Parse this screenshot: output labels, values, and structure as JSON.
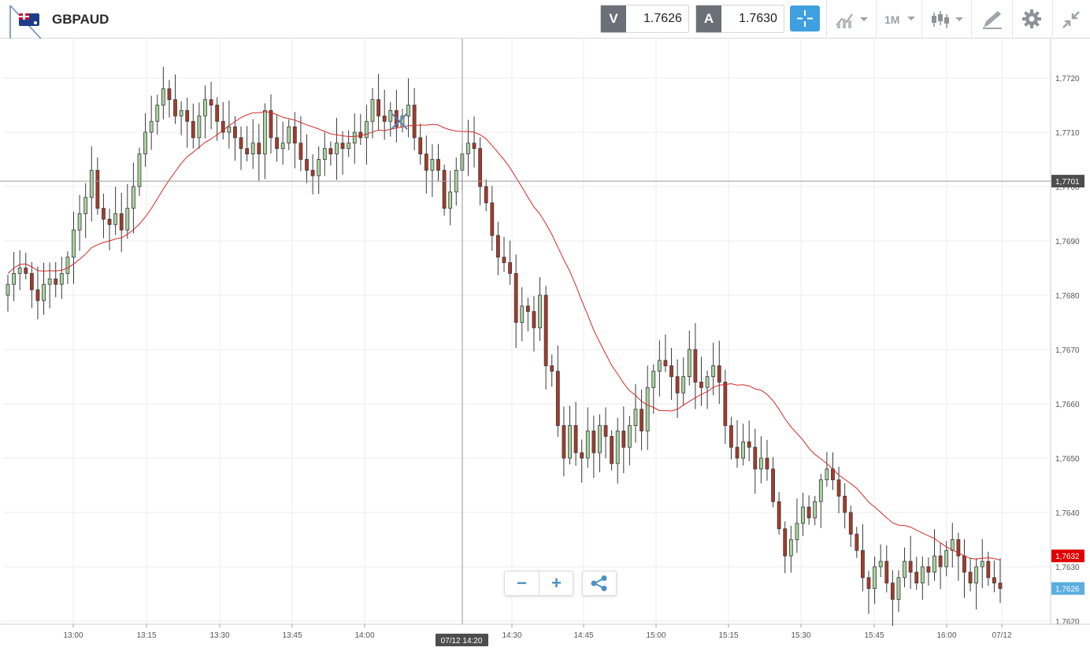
{
  "header": {
    "symbol": "GBPAUD",
    "flag_icon": "gbp-aud-flag-icon",
    "sell": {
      "label": "V",
      "value": "1.7626"
    },
    "buy": {
      "label": "A",
      "value": "1.7630"
    },
    "tools": {
      "crosshair_icon": "crosshair-icon",
      "indicators_icon": "indicators-icon",
      "timeframe": "1M",
      "chart_type_icon": "candlestick-icon",
      "drawing_icon": "drawing-tools-icon",
      "settings_icon": "gear-icon",
      "fullscreen_icon": "collapse-icon"
    }
  },
  "controls": {
    "zoom_out": "−",
    "zoom_in": "+",
    "share_icon": "share-icon"
  },
  "chart_data": {
    "type": "candlestick",
    "timeframe": "1M",
    "x_ticks": [
      "13:00",
      "13:15",
      "13:30",
      "13:45",
      "14:00",
      "14:30",
      "14:45",
      "15:00",
      "15:15",
      "15:30",
      "15:45",
      "16:00",
      "07/12"
    ],
    "y_ticks": [
      "1,7620",
      "1,7630",
      "1,7640",
      "1,7650",
      "1,7660",
      "1,7670",
      "1,7680",
      "1,7690",
      "1,7700",
      "1,7710",
      "1,7720"
    ],
    "ylim": [
      1.762,
      1.773
    ],
    "crosshair": {
      "time_label": "07/12 14:20",
      "price_label": "1,7701",
      "price": 1.7701
    },
    "price_labels": {
      "ma": {
        "text": "1,7632",
        "value": 1.7632,
        "color": "#e00000"
      },
      "last": {
        "text": "1,7626",
        "value": 1.7626,
        "color": "#5aaee0"
      }
    },
    "colors": {
      "up": "#a9d4a0",
      "down": "#a83a2a",
      "ma": "#d22a2a"
    },
    "candles_close": [
      1.7682,
      1.7684,
      1.7685,
      1.7684,
      1.7681,
      1.7679,
      1.7682,
      1.7683,
      1.7682,
      1.7684,
      1.7687,
      1.7692,
      1.7695,
      1.7698,
      1.7703,
      1.7696,
      1.7694,
      1.7693,
      1.7695,
      1.7692,
      1.7696,
      1.77,
      1.7706,
      1.771,
      1.7712,
      1.7715,
      1.7718,
      1.7716,
      1.7713,
      1.7714,
      1.7712,
      1.7709,
      1.7713,
      1.7716,
      1.7715,
      1.7712,
      1.771,
      1.7711,
      1.7709,
      1.7707,
      1.7706,
      1.7708,
      1.7706,
      1.7714,
      1.7709,
      1.7707,
      1.7708,
      1.7711,
      1.7708,
      1.7705,
      1.7703,
      1.7702,
      1.7705,
      1.7707,
      1.7706,
      1.7708,
      1.7707,
      1.7708,
      1.771,
      1.7709,
      1.7712,
      1.7716,
      1.7713,
      1.7712,
      1.7714,
      1.7711,
      1.7713,
      1.7715,
      1.7709,
      1.7706,
      1.7703,
      1.7705,
      1.7703,
      1.7696,
      1.7699,
      1.7703,
      1.7706,
      1.7708,
      1.7707,
      1.77,
      1.7697,
      1.7691,
      1.7687,
      1.7686,
      1.7684,
      1.7675,
      1.7678,
      1.7677,
      1.7674,
      1.768,
      1.7667,
      1.7666,
      1.7656,
      1.765,
      1.7656,
      1.7651,
      1.765,
      1.7655,
      1.7651,
      1.7656,
      1.7654,
      1.7649,
      1.7655,
      1.7652,
      1.7656,
      1.7659,
      1.7655,
      1.7663,
      1.7666,
      1.7668,
      1.7667,
      1.7665,
      1.7662,
      1.7665,
      1.767,
      1.7664,
      1.7663,
      1.7665,
      1.7667,
      1.7664,
      1.7656,
      1.7652,
      1.765,
      1.7653,
      1.7652,
      1.7648,
      1.765,
      1.7648,
      1.7642,
      1.7637,
      1.7632,
      1.7635,
      1.7638,
      1.7641,
      1.7639,
      1.7642,
      1.7646,
      1.7648,
      1.7646,
      1.7643,
      1.764,
      1.7636,
      1.7633,
      1.7628,
      1.7626,
      1.763,
      1.7631,
      1.7627,
      1.7624,
      1.7628,
      1.7631,
      1.7629,
      1.7627,
      1.763,
      1.7629,
      1.7632,
      1.763,
      1.7633,
      1.7635,
      1.7632,
      1.7629,
      1.7627,
      1.763,
      1.7631,
      1.7628,
      1.7627,
      1.7626
    ]
  }
}
